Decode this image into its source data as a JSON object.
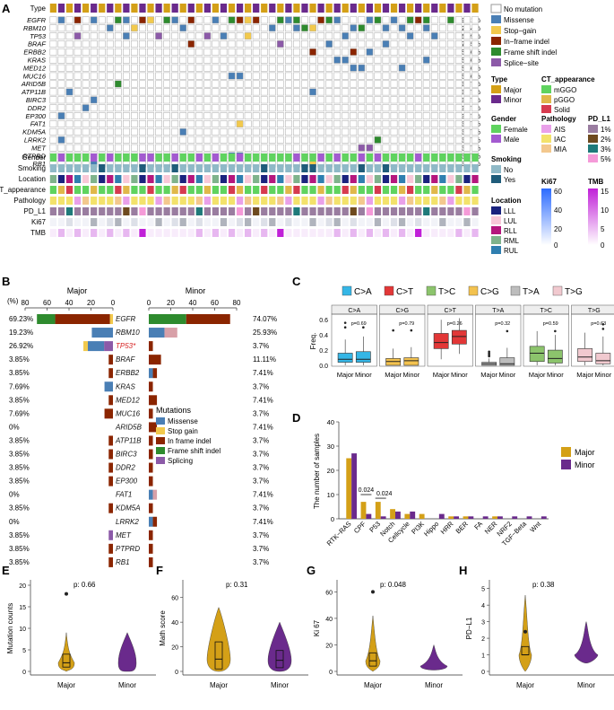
{
  "panel_labels": [
    "A",
    "B",
    "C",
    "D",
    "E",
    "F",
    "G",
    "H"
  ],
  "colors": {
    "major": "#d4a017",
    "minor": "#6a2a8c",
    "missense": "#4a7fb5",
    "stop_gain": "#f2c94c",
    "inframe": "#8b2500",
    "frameshift": "#2e8b2e",
    "splice": "#8c5aa8",
    "nomut": "#ffffff",
    "female": "#5fd35f",
    "male": "#a35ad0",
    "smk_no": "#8fb9c7",
    "smk_yes": "#1f5c7a",
    "mggo": "#5fd35f",
    "pggo": "#e0b84a",
    "solid": "#d63b4f",
    "ais": "#e9a0e9",
    "iac": "#f3e26b",
    "mia": "#f3c88e",
    "pd1": "#9a7da0",
    "pd2": "#6e4a1f",
    "pd3": "#1f7a7a",
    "pd5": "#f59ad8",
    "lll": "#1a237e",
    "lul": "#f8c8d8",
    "rll": "#b5177d",
    "rml": "#7fb38c",
    "rul": "#2f7fb0"
  },
  "panelA": {
    "genes": [
      "EGFR",
      "RBM10",
      "TP53",
      "BRAF",
      "ERBB2",
      "KRAS",
      "MED12",
      "MUC16",
      "ARID5B",
      "ATP11B",
      "BIRC3",
      "DDR2",
      "EP300",
      "FAT1",
      "KDM5A",
      "LRRK2",
      "MET",
      "PTPRD",
      "RB1"
    ],
    "pcts": [
      "69.81%",
      "22.64%",
      "15.09%",
      "7.55%",
      "5.66%",
      "5.66%",
      "5.66%",
      "5.66%",
      "3.77%",
      "3.77%",
      "3.77%",
      "3.77%",
      "3.77%",
      "3.77%",
      "3.77%",
      "3.77%",
      "3.77%",
      "3.77%",
      "3.77%"
    ],
    "row_labels": {
      "type": "Type",
      "gender": "Gender",
      "smoking": "Smoking",
      "location": "Location",
      "ct": "CT_appearance",
      "pathology": "Pathology",
      "pdl1": "PD_L1",
      "ki67": "Ki67",
      "tmb": "TMB"
    },
    "legend_mut": {
      "nomut": "No mutation",
      "missense": "Missense",
      "stop": "Stop−gain",
      "inframe": "In−frame indel",
      "frameshift": "Frame shift indel",
      "splice": "Splice−site"
    },
    "legend_groups": {
      "type_title": "Type",
      "type_items": [
        "Major",
        "Minor"
      ],
      "ct_title": "CT_appearance",
      "ct_items": [
        "mGGO",
        "pGGO",
        "Solid"
      ],
      "gender_title": "Gender",
      "gender_items": [
        "Female",
        "Male"
      ],
      "path_title": "Pathology",
      "path_items": [
        "AIS",
        "IAC",
        "MIA"
      ],
      "pd_title": "PD_L1",
      "pd_items": [
        "1%",
        "2%",
        "3%",
        "5%"
      ],
      "smoking_title": "Smoking",
      "smoking_items": [
        "No",
        "Yes"
      ],
      "loc_title": "Location",
      "loc_items": [
        "LLL",
        "LUL",
        "RLL",
        "RML",
        "RUL"
      ],
      "ki67_title": "Ki67",
      "ki67_ticks": [
        "60",
        "40",
        "20",
        "0"
      ],
      "tmb_title": "TMB",
      "tmb_ticks": [
        "15",
        "10",
        "5",
        "0"
      ]
    }
  },
  "panelB": {
    "major_title": "Major",
    "minor_title": "Minor",
    "pct_unit": "(%)",
    "major_axis": [
      "80",
      "60",
      "40",
      "20",
      "0"
    ],
    "minor_axis": [
      "0",
      "20",
      "40",
      "60",
      "80"
    ],
    "genes": [
      "EGFR",
      "RBM10",
      "TP53*",
      "BRAF",
      "ERBB2",
      "KRAS",
      "MED12",
      "MUC16",
      "ARID5B",
      "ATP11B",
      "BIRC3",
      "DDR2",
      "EP300",
      "FAT1",
      "KDM5A",
      "LRRK2",
      "MET",
      "PTPRD",
      "RB1"
    ],
    "major_pct": [
      "69.23%",
      "19.23%",
      "26.92%",
      "3.85%",
      "3.85%",
      "7.69%",
      "3.85%",
      "7.69%",
      "0%",
      "3.85%",
      "3.85%",
      "3.85%",
      "3.85%",
      "0%",
      "3.85%",
      "0%",
      "3.85%",
      "3.85%",
      "3.85%"
    ],
    "minor_pct": [
      "74.07%",
      "25.93%",
      "3.7%",
      "11.11%",
      "7.41%",
      "3.7%",
      "7.41%",
      "3.7%",
      "7.41%",
      "3.7%",
      "3.7%",
      "3.7%",
      "3.7%",
      "7.41%",
      "3.7%",
      "7.41%",
      "3.7%",
      "3.7%",
      "3.7%"
    ],
    "legend_title": "Mutations",
    "legend_items": [
      "Missense",
      "Stop gain",
      "In frame indel",
      "Frame shift indel",
      "Splicing"
    ]
  },
  "chart_data": [
    {
      "type": "stacked-bar",
      "panel": "B",
      "title": "Mutation frequency by gene (Major vs Minor)",
      "categories": [
        "EGFR",
        "RBM10",
        "TP53",
        "BRAF",
        "ERBB2",
        "KRAS",
        "MED12",
        "MUC16",
        "ARID5B",
        "ATP11B",
        "BIRC3",
        "DDR2",
        "EP300",
        "FAT1",
        "KDM5A",
        "LRRK2",
        "MET",
        "PTPRD",
        "RB1"
      ],
      "major_totals": [
        69.23,
        19.23,
        26.92,
        3.85,
        3.85,
        7.69,
        3.85,
        7.69,
        0,
        3.85,
        3.85,
        3.85,
        3.85,
        0,
        3.85,
        0,
        3.85,
        3.85,
        3.85
      ],
      "minor_totals": [
        74.07,
        25.93,
        3.7,
        11.11,
        7.41,
        3.7,
        7.41,
        3.7,
        7.41,
        3.7,
        3.7,
        3.7,
        3.7,
        7.41,
        3.7,
        7.41,
        3.7,
        3.7,
        3.7
      ]
    },
    {
      "type": "box",
      "panel": "C",
      "ylabel": "Freq.",
      "ylim": [
        0,
        0.65
      ],
      "yticks": [
        "0.0",
        "0.2",
        "0.4",
        "0.6"
      ],
      "legend": [
        "C>A",
        "C>T",
        "T>C",
        "C>G",
        "T>A",
        "T>G"
      ],
      "facets": [
        {
          "name": "C>A",
          "p": "p=0.69",
          "major": [
            0,
            0.04,
            0.08,
            0.16,
            0.34
          ],
          "minor": [
            0,
            0.04,
            0.08,
            0.18,
            0.38
          ]
        },
        {
          "name": "C>G",
          "p": "p=0.79",
          "major": [
            0,
            0,
            0.05,
            0.09,
            0.22
          ],
          "minor": [
            0,
            0,
            0.06,
            0.1,
            0.24
          ]
        },
        {
          "name": "C>T",
          "p": "p=0.26",
          "major": [
            0.08,
            0.22,
            0.3,
            0.42,
            0.6
          ],
          "minor": [
            0.15,
            0.28,
            0.38,
            0.46,
            0.62
          ]
        },
        {
          "name": "T>A",
          "p": "p=0.32",
          "major": [
            0,
            0,
            0.02,
            0.04,
            0.09
          ],
          "minor": [
            0,
            0,
            0.02,
            0.1,
            0.23
          ]
        },
        {
          "name": "T>C",
          "p": "p=0.59",
          "major": [
            0,
            0.05,
            0.16,
            0.25,
            0.45
          ],
          "minor": [
            0,
            0.03,
            0.09,
            0.2,
            0.4
          ]
        },
        {
          "name": "T>G",
          "p": "p=0.63",
          "major": [
            0,
            0.05,
            0.11,
            0.22,
            0.43
          ],
          "minor": [
            0,
            0.02,
            0.06,
            0.16,
            0.38
          ]
        }
      ]
    },
    {
      "type": "bar",
      "panel": "D",
      "ylabel": "The number of samples",
      "ylim": [
        0,
        40
      ],
      "yticks": [
        "0",
        "10",
        "20",
        "30",
        "40"
      ],
      "categories": [
        "RTK−RAS",
        "CPF",
        "P53",
        "Notch",
        "Cellcycle",
        "PI3K",
        "Hippo",
        "HRR",
        "BER",
        "FA",
        "NER",
        "NRF2",
        "TGF−Beta",
        "Wnt"
      ],
      "series": [
        {
          "name": "Major",
          "values": [
            25,
            7,
            7,
            4,
            2,
            2,
            0,
            1,
            1,
            0,
            1,
            0,
            0,
            0
          ]
        },
        {
          "name": "Minor",
          "values": [
            27,
            2,
            1,
            3,
            3,
            0,
            2,
            1,
            1,
            1,
            1,
            1,
            1,
            1
          ]
        }
      ],
      "annotations": [
        "0.024",
        "0.024"
      ]
    },
    {
      "type": "violin",
      "panel": "E",
      "ylabel": "Mutation counts",
      "p": "p: 0.66",
      "groups": [
        "Major",
        "Minor"
      ]
    },
    {
      "type": "violin",
      "panel": "F",
      "ylabel": "Math score",
      "p": "p: 0.31",
      "groups": [
        "Major",
        "Minor"
      ]
    },
    {
      "type": "violin",
      "panel": "G",
      "ylabel": "Ki 67",
      "p": "p: 0.048",
      "groups": [
        "Major",
        "Minor"
      ]
    },
    {
      "type": "violin",
      "panel": "H",
      "ylabel": "PD−L1",
      "p": "p: 0.38",
      "groups": [
        "Major",
        "Minor"
      ]
    }
  ],
  "panelD_legend": [
    "Major",
    "Minor"
  ]
}
